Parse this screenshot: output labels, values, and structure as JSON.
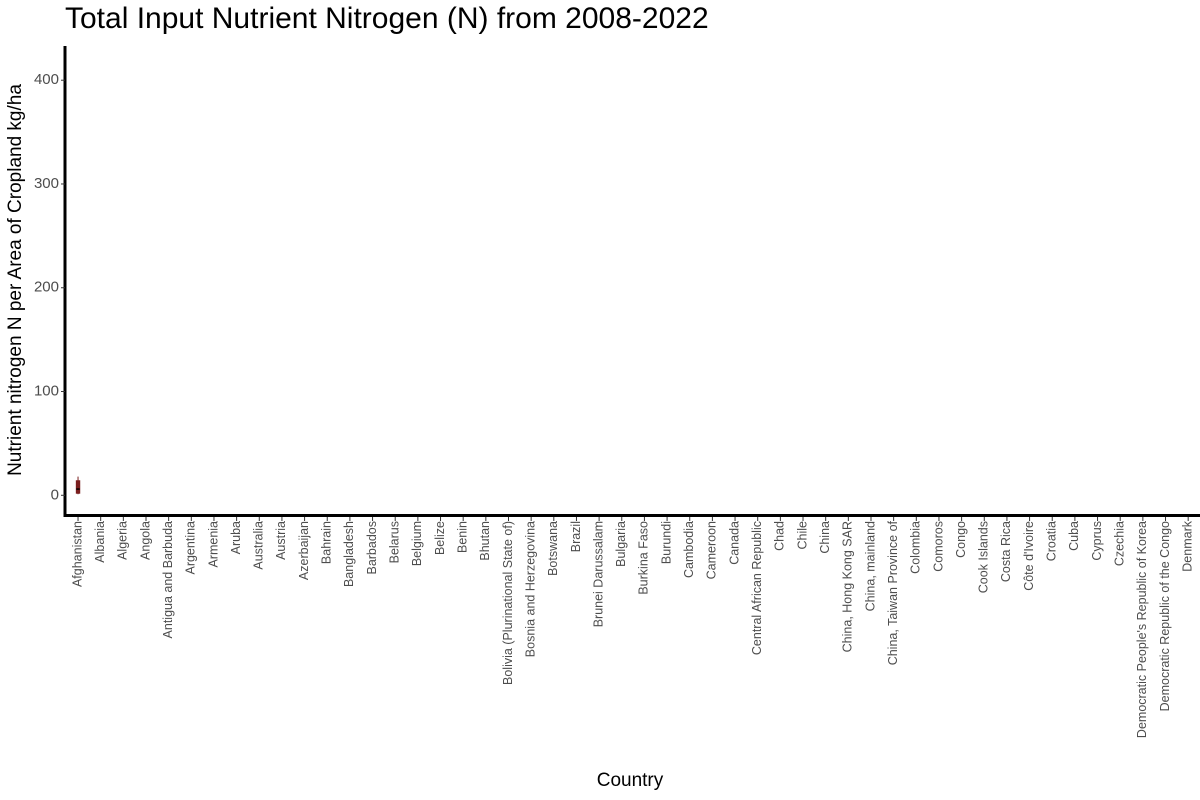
{
  "chart_data": {
    "type": "box",
    "title": "Total Input Nutrient Nitrogen (N) from 2008-2022",
    "x_label": "Country",
    "y_label": "Nutrient nitrogen N per Area of Cropland kg/ha",
    "categories": [
      "Afghanistan",
      "Albania",
      "Algeria",
      "Angola",
      "Antigua and Barbuda",
      "Argentina",
      "Armenia",
      "Aruba",
      "Australia",
      "Austria",
      "Azerbaijan",
      "Bahrain",
      "Bangladesh",
      "Barbados",
      "Belarus",
      "Belgium",
      "Belize",
      "Benin",
      "Bhutan",
      "Bolivia (Plurinational State of)",
      "Bosnia and Herzegovina",
      "Botswana",
      "Brazil",
      "Brunei Darussalam",
      "Bulgaria",
      "Burkina Faso",
      "Burundi",
      "Cambodia",
      "Cameroon",
      "Canada",
      "Central African Republic",
      "Chad",
      "Chile",
      "China",
      "China, Hong Kong SAR",
      "China, mainland",
      "China, Taiwan Province of",
      "Colombia",
      "Comoros",
      "Congo",
      "Cook Islands",
      "Costa Rica",
      "Côte d'Ivoire",
      "Croatia",
      "Cuba",
      "Cyprus",
      "Czechia",
      "Democratic People's Republic of Korea",
      "Democratic Republic of the Congo",
      "Denmark"
    ],
    "min": [
      1,
      null,
      null,
      null,
      null,
      null,
      null,
      null,
      null,
      null,
      null,
      null,
      null,
      null,
      null,
      null,
      null,
      null,
      null,
      null,
      null,
      null,
      null,
      null,
      null,
      null,
      null,
      null,
      null,
      null,
      null,
      null,
      null,
      null,
      null,
      null,
      null,
      null,
      null,
      null,
      null,
      null,
      null,
      null,
      null,
      null,
      null,
      null,
      null,
      null
    ],
    "q1": [
      2,
      null,
      null,
      null,
      null,
      null,
      null,
      null,
      null,
      null,
      null,
      null,
      null,
      null,
      null,
      null,
      null,
      null,
      null,
      null,
      null,
      null,
      null,
      null,
      null,
      null,
      null,
      null,
      null,
      null,
      null,
      null,
      null,
      null,
      null,
      null,
      null,
      null,
      null,
      null,
      null,
      null,
      null,
      null,
      null,
      null,
      null,
      null,
      null,
      null
    ],
    "median": [
      6,
      null,
      null,
      null,
      null,
      null,
      null,
      null,
      null,
      null,
      null,
      null,
      null,
      null,
      null,
      null,
      null,
      null,
      null,
      null,
      null,
      null,
      null,
      null,
      null,
      null,
      null,
      null,
      null,
      null,
      null,
      null,
      null,
      null,
      null,
      null,
      null,
      null,
      null,
      null,
      null,
      null,
      null,
      null,
      null,
      null,
      null,
      null,
      null,
      null
    ],
    "q3": [
      14,
      null,
      null,
      null,
      null,
      null,
      null,
      null,
      null,
      null,
      null,
      null,
      null,
      null,
      null,
      null,
      null,
      null,
      null,
      null,
      null,
      null,
      null,
      null,
      null,
      null,
      null,
      null,
      null,
      null,
      null,
      null,
      null,
      null,
      null,
      null,
      null,
      null,
      null,
      null,
      null,
      null,
      null,
      null,
      null,
      null,
      null,
      null,
      null,
      null
    ],
    "max": [
      18,
      null,
      null,
      null,
      null,
      null,
      null,
      null,
      null,
      null,
      null,
      null,
      null,
      null,
      null,
      null,
      null,
      null,
      null,
      null,
      null,
      null,
      null,
      null,
      null,
      null,
      null,
      null,
      null,
      null,
      null,
      null,
      null,
      null,
      null,
      null,
      null,
      null,
      null,
      null,
      null,
      null,
      null,
      null,
      null,
      null,
      null,
      null,
      null,
      null
    ],
    "color": "#7a1f1f",
    "ylim": [
      -19,
      432
    ],
    "yticks": [
      0,
      100,
      200,
      300,
      400
    ],
    "grid": false
  }
}
